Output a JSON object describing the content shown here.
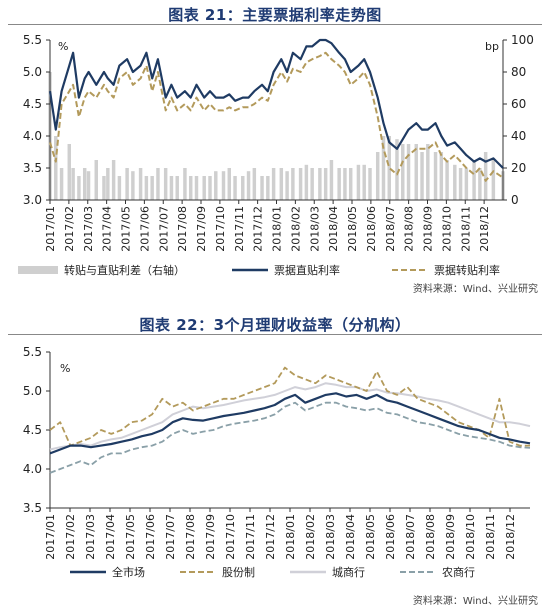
{
  "figures": {
    "fig1_title": "图表 21：主要票据利率走势图",
    "fig2_title": "图表 22：3个月理财收益率（分机构）",
    "source1": "资料来源：Wind、兴业研究",
    "source2": "资料来源：Wind、兴业研究"
  },
  "colors": {
    "navy": "#1f3b63",
    "gold": "#b39a5b",
    "lightgray": "#cfcfcf",
    "lavender": "#d0d0d8",
    "slate": "#8aa0a8",
    "title": "#1f3b73"
  },
  "chart_data": [
    {
      "type": "line",
      "title": "图表 21：主要票据利率走势图",
      "left_unit": "%",
      "right_unit": "bp",
      "ylim": [
        3.0,
        5.5
      ],
      "ylim_right": [
        0,
        100
      ],
      "yticks": [
        "5.5",
        "5.0",
        "4.5",
        "4.0",
        "3.5",
        "3.0"
      ],
      "yticks_right": [
        "100",
        "80",
        "60",
        "40",
        "20",
        "0"
      ],
      "categories": [
        "2017/01",
        "2017/02",
        "2017/03",
        "2017/04",
        "2017/05",
        "2017/06",
        "2017/07",
        "2017/08",
        "2017/09",
        "2017/10",
        "2017/11",
        "2017/12",
        "2018/01",
        "2018/02",
        "2018/03",
        "2018/04",
        "2018/05",
        "2018/06",
        "2018/07",
        "2018/08",
        "2018/09",
        "2018/10",
        "2018/11",
        "2018/12"
      ],
      "x": [
        0,
        0.3,
        0.6,
        1.0,
        1.2,
        1.5,
        1.8,
        2.0,
        2.4,
        2.8,
        3.0,
        3.3,
        3.6,
        4.0,
        4.3,
        4.7,
        5.0,
        5.3,
        5.6,
        6.0,
        6.3,
        6.6,
        7.0,
        7.3,
        7.6,
        8.0,
        8.3,
        8.6,
        9.0,
        9.3,
        9.6,
        10.0,
        10.3,
        10.6,
        11.0,
        11.3,
        11.6,
        12.0,
        12.3,
        12.6,
        13.0,
        13.3,
        13.6,
        14.0,
        14.3,
        14.6,
        15.0,
        15.3,
        15.6,
        16.0,
        16.3,
        16.6,
        17.0,
        17.3,
        17.6,
        18.0,
        18.3,
        18.6,
        19.0,
        19.3,
        19.6,
        20.0,
        20.3,
        20.6,
        21.0,
        21.3,
        21.6,
        22.0,
        22.3,
        22.6,
        23.0,
        23.5
      ],
      "series": [
        {
          "name": "票据直贴利率",
          "axis": "left",
          "values": [
            4.7,
            4.1,
            4.7,
            5.1,
            5.3,
            4.6,
            4.9,
            5.0,
            4.8,
            5.0,
            4.9,
            4.8,
            5.1,
            5.2,
            5.0,
            5.1,
            5.3,
            4.9,
            5.2,
            4.6,
            4.8,
            4.6,
            4.7,
            4.6,
            4.8,
            4.6,
            4.7,
            4.6,
            4.6,
            4.65,
            4.55,
            4.6,
            4.6,
            4.7,
            4.8,
            4.7,
            5.0,
            5.2,
            5.0,
            5.3,
            5.2,
            5.4,
            5.4,
            5.5,
            5.5,
            5.45,
            5.3,
            5.2,
            5.0,
            5.1,
            5.2,
            5.0,
            4.6,
            4.2,
            3.9,
            3.8,
            3.95,
            4.1,
            4.2,
            4.1,
            4.1,
            4.2,
            4.0,
            3.85,
            3.9,
            3.8,
            3.7,
            3.6,
            3.65,
            3.6,
            3.65,
            3.5
          ]
        },
        {
          "name": "票据转贴利率",
          "axis": "left",
          "values": [
            3.9,
            3.6,
            4.5,
            4.7,
            4.8,
            4.3,
            4.6,
            4.7,
            4.6,
            4.8,
            4.7,
            4.6,
            4.9,
            5.0,
            4.8,
            4.9,
            5.1,
            4.7,
            5.0,
            4.4,
            4.6,
            4.4,
            4.5,
            4.4,
            4.6,
            4.4,
            4.5,
            4.4,
            4.4,
            4.45,
            4.4,
            4.45,
            4.45,
            4.5,
            4.6,
            4.55,
            4.8,
            5.0,
            4.85,
            5.05,
            5.0,
            5.15,
            5.2,
            5.25,
            5.3,
            5.2,
            5.1,
            5.0,
            4.8,
            4.9,
            5.0,
            4.8,
            4.3,
            3.8,
            3.5,
            3.4,
            3.6,
            3.7,
            3.8,
            3.8,
            3.8,
            3.9,
            3.7,
            3.6,
            3.7,
            3.6,
            3.5,
            3.4,
            3.5,
            3.3,
            3.45,
            3.35
          ]
        },
        {
          "name": "转贴与直贴利差（右轴）",
          "axis": "right",
          "type": "bar",
          "values": [
            80,
            40,
            20,
            35,
            20,
            15,
            20,
            18,
            25,
            15,
            20,
            25,
            15,
            20,
            18,
            20,
            15,
            15,
            20,
            20,
            15,
            15,
            20,
            15,
            15,
            15,
            15,
            18,
            18,
            20,
            15,
            15,
            18,
            20,
            15,
            15,
            20,
            20,
            18,
            20,
            20,
            22,
            20,
            20,
            20,
            25,
            20,
            20,
            20,
            22,
            22,
            20,
            30,
            40,
            40,
            38,
            35,
            35,
            35,
            30,
            35,
            30,
            30,
            25,
            22,
            20,
            20,
            25,
            20,
            30,
            25,
            18
          ]
        }
      ],
      "legend": [
        "转贴与直贴利差（右轴）",
        "票据直贴利率",
        "票据转贴利率"
      ],
      "legend_position": "bottom",
      "grid": false
    },
    {
      "type": "line",
      "title": "图表 22：3个月理财收益率（分机构）",
      "left_unit": "%",
      "ylim": [
        3.5,
        5.5
      ],
      "yticks": [
        "5.5",
        "5.0",
        "4.5",
        "4.0",
        "3.5"
      ],
      "categories": [
        "2017/01",
        "2017/02",
        "2017/03",
        "2017/04",
        "2017/05",
        "2017/06",
        "2017/07",
        "2017/08",
        "2017/09",
        "2017/10",
        "2017/11",
        "2017/12",
        "2018/01",
        "2018/02",
        "2018/03",
        "2018/04",
        "2018/05",
        "2018/06",
        "2018/07",
        "2018/08",
        "2018/09",
        "2018/10",
        "2018/11",
        "2018/12"
      ],
      "x": [
        0,
        0.5,
        1,
        1.5,
        2,
        2.5,
        3,
        3.5,
        4,
        4.5,
        5,
        5.5,
        6,
        6.5,
        7,
        7.5,
        8,
        8.5,
        9,
        9.5,
        10,
        10.5,
        11,
        11.5,
        12,
        12.5,
        13,
        13.5,
        14,
        14.5,
        15,
        15.5,
        16,
        16.5,
        17,
        17.5,
        18,
        18.5,
        19,
        19.5,
        20,
        20.5,
        21,
        21.5,
        22,
        22.5,
        23,
        23.5
      ],
      "series": [
        {
          "name": "全市场",
          "values": [
            4.2,
            4.25,
            4.3,
            4.3,
            4.28,
            4.3,
            4.32,
            4.35,
            4.38,
            4.42,
            4.45,
            4.5,
            4.6,
            4.65,
            4.63,
            4.62,
            4.65,
            4.68,
            4.7,
            4.72,
            4.75,
            4.78,
            4.82,
            4.9,
            4.95,
            4.85,
            4.9,
            4.95,
            4.97,
            4.93,
            4.95,
            4.9,
            4.95,
            4.88,
            4.85,
            4.8,
            4.75,
            4.7,
            4.65,
            4.6,
            4.55,
            4.52,
            4.5,
            4.45,
            4.4,
            4.38,
            4.35,
            4.33
          ]
        },
        {
          "name": "股份制",
          "values": [
            4.5,
            4.6,
            4.3,
            4.35,
            4.4,
            4.5,
            4.45,
            4.5,
            4.6,
            4.62,
            4.7,
            4.9,
            4.8,
            4.85,
            4.75,
            4.8,
            4.85,
            4.9,
            4.9,
            4.95,
            5.0,
            5.05,
            5.1,
            5.3,
            5.2,
            5.15,
            5.1,
            5.2,
            5.15,
            5.1,
            5.05,
            5.0,
            5.25,
            5.0,
            4.95,
            5.05,
            4.9,
            4.85,
            4.8,
            4.7,
            4.6,
            4.55,
            4.5,
            4.4,
            4.9,
            4.35,
            4.3,
            4.3
          ]
        },
        {
          "name": "城商行",
          "values": [
            4.25,
            4.28,
            4.3,
            4.32,
            4.3,
            4.35,
            4.38,
            4.4,
            4.45,
            4.5,
            4.55,
            4.6,
            4.7,
            4.75,
            4.8,
            4.78,
            4.8,
            4.82,
            4.85,
            4.88,
            4.9,
            4.92,
            4.95,
            5.0,
            5.05,
            5.02,
            5.05,
            5.1,
            5.08,
            5.05,
            5.05,
            5.0,
            5.02,
            4.98,
            4.97,
            4.95,
            4.93,
            4.9,
            4.88,
            4.85,
            4.8,
            4.75,
            4.7,
            4.65,
            4.6,
            4.6,
            4.58,
            4.55
          ]
        },
        {
          "name": "农商行",
          "values": [
            3.95,
            4.0,
            4.05,
            4.1,
            4.05,
            4.15,
            4.2,
            4.2,
            4.25,
            4.28,
            4.3,
            4.35,
            4.45,
            4.5,
            4.45,
            4.48,
            4.5,
            4.55,
            4.58,
            4.6,
            4.62,
            4.65,
            4.7,
            4.8,
            4.85,
            4.75,
            4.8,
            4.85,
            4.85,
            4.8,
            4.78,
            4.75,
            4.78,
            4.72,
            4.7,
            4.65,
            4.6,
            4.58,
            4.55,
            4.5,
            4.45,
            4.42,
            4.4,
            4.38,
            4.35,
            4.3,
            4.28,
            4.27
          ]
        }
      ],
      "legend": [
        "全市场",
        "股份制",
        "城商行",
        "农商行"
      ],
      "legend_position": "bottom",
      "grid": false
    }
  ]
}
